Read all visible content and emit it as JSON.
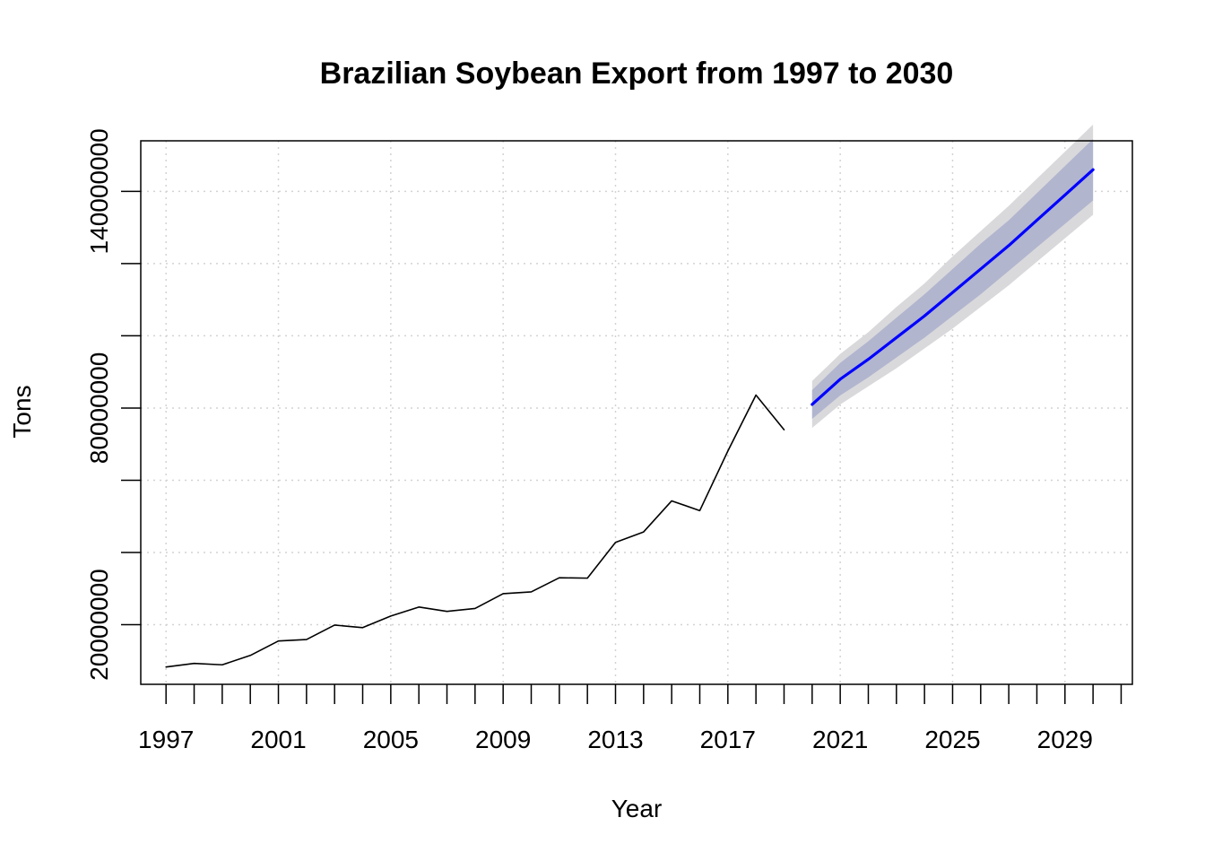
{
  "chart_data": {
    "type": "line",
    "title": "Brazilian Soybean Export from 1997 to 2030",
    "xlabel": "Year",
    "ylabel": "Tons",
    "xlim": [
      1996.1,
      2031.4
    ],
    "ylim": [
      3500000,
      154000000
    ],
    "grid": true,
    "x_tick_labels": [
      "1997",
      "2001",
      "2005",
      "2009",
      "2013",
      "2017",
      "2021",
      "2025",
      "2029"
    ],
    "x_minor_ticks": [
      1997,
      1998,
      1999,
      2000,
      2001,
      2002,
      2003,
      2004,
      2005,
      2006,
      2007,
      2008,
      2009,
      2010,
      2011,
      2012,
      2013,
      2014,
      2015,
      2016,
      2017,
      2018,
      2019,
      2020,
      2021,
      2022,
      2023,
      2024,
      2025,
      2026,
      2027,
      2028,
      2029,
      2030,
      2031
    ],
    "y_tick_labels": [
      "20000000",
      "80000000",
      "140000000"
    ],
    "y_minor_ticks": [
      20000000,
      40000000,
      60000000,
      80000000,
      100000000,
      120000000,
      140000000
    ],
    "series": [
      {
        "x": [
          1997,
          1998,
          1999,
          2000,
          2001,
          2002,
          2003,
          2004,
          2005,
          2006,
          2007,
          2008,
          2009,
          2010,
          2011,
          2012,
          2013,
          2014,
          2015,
          2016,
          2017,
          2018,
          2019
        ],
        "values": [
          8300000,
          9300000,
          8900000,
          11500000,
          15500000,
          15900000,
          19900000,
          19200000,
          22400000,
          24900000,
          23700000,
          24500000,
          28600000,
          29100000,
          33000000,
          32900000,
          42800000,
          45700000,
          54300000,
          51600000,
          68100000,
          83600000,
          74000000
        ],
        "color": "#000000"
      },
      {
        "x": [
          2020,
          2021,
          2022,
          2023,
          2024,
          2025,
          2026,
          2027,
          2028,
          2029,
          2030
        ],
        "values": [
          81000000,
          88000000,
          93500000,
          99500000,
          105500000,
          112000000,
          118500000,
          125000000,
          132000000,
          139000000,
          146000000
        ],
        "lo80": [
          77000000,
          83500000,
          88500000,
          94000000,
          99500000,
          105500000,
          111500000,
          118000000,
          124500000,
          131000000,
          137500000
        ],
        "hi80": [
          85000000,
          92500000,
          98500000,
          105000000,
          111500000,
          118500000,
          125500000,
          132000000,
          139500000,
          147000000,
          154500000
        ],
        "lo95": [
          74500000,
          81000000,
          86000000,
          91000000,
          96500000,
          102000000,
          108000000,
          114000000,
          120500000,
          127000000,
          133500000
        ],
        "hi95": [
          87500000,
          95000000,
          101000000,
          108000000,
          114500000,
          122000000,
          129000000,
          136000000,
          143500000,
          151000000,
          158500000
        ],
        "color": "#0000ff",
        "band80_color": "#b1b5ce",
        "band95_color": "#d9d9dc"
      }
    ]
  }
}
